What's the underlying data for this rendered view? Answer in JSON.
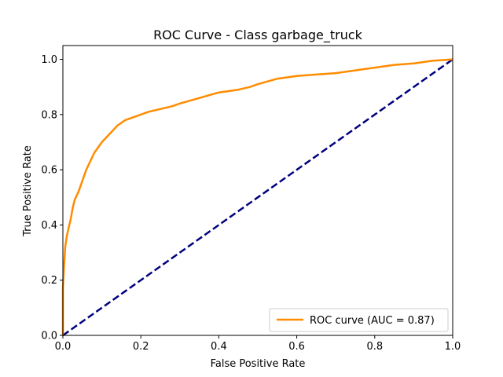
{
  "chart_data": {
    "type": "line",
    "title": "ROC Curve - Class garbage_truck",
    "xlabel": "False Positive Rate",
    "ylabel": "True Positive Rate",
    "xlim": [
      0,
      1
    ],
    "ylim": [
      0,
      1.05
    ],
    "xticks": [
      "0.0",
      "0.2",
      "0.4",
      "0.6",
      "0.8",
      "1.0"
    ],
    "yticks": [
      "0.0",
      "0.2",
      "0.4",
      "0.6",
      "0.8",
      "1.0"
    ],
    "grid": false,
    "legend_position": "lower right",
    "series": [
      {
        "name": "ROC curve (AUC = 0.87)",
        "color": "#ff8c00",
        "style": "solid",
        "x": [
          0,
          0,
          0.003,
          0.006,
          0.01,
          0.015,
          0.02,
          0.025,
          0.03,
          0.04,
          0.05,
          0.06,
          0.07,
          0.08,
          0.09,
          0.1,
          0.12,
          0.14,
          0.16,
          0.18,
          0.2,
          0.22,
          0.25,
          0.28,
          0.3,
          0.35,
          0.4,
          0.45,
          0.48,
          0.5,
          0.55,
          0.6,
          0.65,
          0.7,
          0.75,
          0.8,
          0.85,
          0.9,
          0.95,
          1.0
        ],
        "y": [
          0,
          0.17,
          0.25,
          0.32,
          0.36,
          0.39,
          0.42,
          0.46,
          0.49,
          0.52,
          0.56,
          0.6,
          0.63,
          0.66,
          0.68,
          0.7,
          0.73,
          0.76,
          0.78,
          0.79,
          0.8,
          0.81,
          0.82,
          0.83,
          0.84,
          0.86,
          0.88,
          0.89,
          0.9,
          0.91,
          0.93,
          0.94,
          0.945,
          0.95,
          0.96,
          0.97,
          0.98,
          0.985,
          0.995,
          1.0
        ]
      },
      {
        "name": "",
        "color": "#000080",
        "style": "dashed",
        "x": [
          0,
          1
        ],
        "y": [
          0,
          1
        ]
      }
    ]
  }
}
